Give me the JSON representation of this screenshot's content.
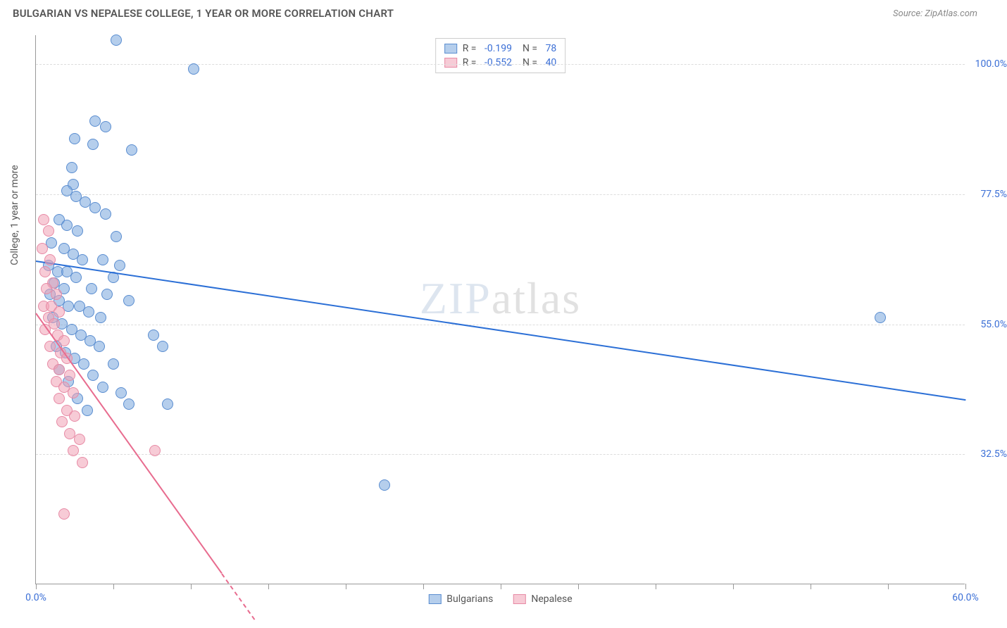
{
  "title": "BULGARIAN VS NEPALESE COLLEGE, 1 YEAR OR MORE CORRELATION CHART",
  "source": "Source: ZipAtlas.com",
  "watermark_zip": "ZIP",
  "watermark_atlas": "atlas",
  "chart": {
    "type": "scatter",
    "ylabel": "College, 1 year or more",
    "xlim": [
      0,
      60
    ],
    "ylim": [
      10,
      105
    ],
    "xtick_positions": [
      0,
      5,
      10,
      15,
      20,
      25,
      30,
      35,
      40,
      45,
      50,
      55,
      60
    ],
    "xtick_labels": {
      "0": "0.0%",
      "60": "60.0%"
    },
    "ytick_positions": [
      32.5,
      55.0,
      77.5,
      100.0
    ],
    "ytick_labels": [
      "32.5%",
      "55.0%",
      "77.5%",
      "100.0%"
    ],
    "background_color": "#ffffff",
    "grid_color": "#dddddd",
    "axis_color": "#999999",
    "tick_label_color": "#3b6fd6",
    "label_color": "#555555",
    "title_fontsize": 15,
    "label_fontsize": 14,
    "series": [
      {
        "name": "Bulgarians",
        "marker_color": "rgba(120,165,220,0.55)",
        "marker_border": "#5a8dd0",
        "marker_radius": 8,
        "trend_color": "#2b6fd6",
        "trend_dash": "solid",
        "R": "-0.199",
        "N": "78",
        "trend": {
          "x1": 0,
          "y1": 66,
          "x2": 60,
          "y2": 42
        },
        "points": [
          [
            5.2,
            104
          ],
          [
            10.2,
            99
          ],
          [
            3.8,
            90
          ],
          [
            4.5,
            89
          ],
          [
            2.5,
            87
          ],
          [
            3.7,
            86
          ],
          [
            6.2,
            85
          ],
          [
            2.3,
            82
          ],
          [
            2.4,
            79
          ],
          [
            2.0,
            78
          ],
          [
            2.6,
            77
          ],
          [
            3.2,
            76
          ],
          [
            3.8,
            75
          ],
          [
            4.5,
            74
          ],
          [
            1.5,
            73
          ],
          [
            2.0,
            72
          ],
          [
            2.7,
            71
          ],
          [
            5.2,
            70
          ],
          [
            1.0,
            69
          ],
          [
            1.8,
            68
          ],
          [
            2.4,
            67
          ],
          [
            3.0,
            66
          ],
          [
            4.3,
            66
          ],
          [
            5.4,
            65
          ],
          [
            0.8,
            65
          ],
          [
            1.4,
            64
          ],
          [
            2.0,
            64
          ],
          [
            2.6,
            63
          ],
          [
            5.0,
            63
          ],
          [
            1.2,
            62
          ],
          [
            1.8,
            61
          ],
          [
            3.6,
            61
          ],
          [
            4.6,
            60
          ],
          [
            0.9,
            60
          ],
          [
            1.5,
            59
          ],
          [
            6.0,
            59
          ],
          [
            2.1,
            58
          ],
          [
            2.8,
            58
          ],
          [
            3.4,
            57
          ],
          [
            1.1,
            56
          ],
          [
            4.2,
            56
          ],
          [
            1.7,
            55
          ],
          [
            54.5,
            56
          ],
          [
            2.3,
            54
          ],
          [
            7.6,
            53
          ],
          [
            2.9,
            53
          ],
          [
            3.5,
            52
          ],
          [
            1.3,
            51
          ],
          [
            4.1,
            51
          ],
          [
            8.2,
            51
          ],
          [
            1.9,
            50
          ],
          [
            2.5,
            49
          ],
          [
            5.0,
            48
          ],
          [
            3.1,
            48
          ],
          [
            1.5,
            47
          ],
          [
            3.7,
            46
          ],
          [
            2.1,
            45
          ],
          [
            4.3,
            44
          ],
          [
            5.5,
            43
          ],
          [
            2.7,
            42
          ],
          [
            6.0,
            41
          ],
          [
            8.5,
            41
          ],
          [
            3.3,
            40
          ],
          [
            22.5,
            27
          ]
        ]
      },
      {
        "name": "Nepalese",
        "marker_color": "rgba(240,160,180,0.55)",
        "marker_border": "#e78aa5",
        "marker_radius": 8,
        "trend_color": "#e86c8f",
        "trend_dash": "solid_then_dashed",
        "R": "-0.552",
        "N": "40",
        "trend": {
          "x1": 0,
          "y1": 57,
          "x2": 12,
          "y2": 12
        },
        "points": [
          [
            0.5,
            73
          ],
          [
            0.8,
            71
          ],
          [
            0.4,
            68
          ],
          [
            0.9,
            66
          ],
          [
            0.6,
            64
          ],
          [
            1.1,
            62
          ],
          [
            0.7,
            61
          ],
          [
            1.3,
            60
          ],
          [
            0.5,
            58
          ],
          [
            1.0,
            58
          ],
          [
            1.5,
            57
          ],
          [
            0.8,
            56
          ],
          [
            1.2,
            55
          ],
          [
            0.6,
            54
          ],
          [
            1.4,
            53
          ],
          [
            1.8,
            52
          ],
          [
            0.9,
            51
          ],
          [
            1.6,
            50
          ],
          [
            2.0,
            49
          ],
          [
            1.1,
            48
          ],
          [
            1.5,
            47
          ],
          [
            2.2,
            46
          ],
          [
            1.3,
            45
          ],
          [
            1.8,
            44
          ],
          [
            2.4,
            43
          ],
          [
            1.5,
            42
          ],
          [
            2.0,
            40
          ],
          [
            2.5,
            39
          ],
          [
            1.7,
            38
          ],
          [
            2.2,
            36
          ],
          [
            2.8,
            35
          ],
          [
            7.7,
            33
          ],
          [
            2.4,
            33
          ],
          [
            3.0,
            31
          ],
          [
            1.8,
            22
          ]
        ]
      }
    ],
    "legend_bottom": [
      {
        "label": "Bulgarians",
        "fill": "rgba(120,165,220,0.55)",
        "border": "#5a8dd0"
      },
      {
        "label": "Nepalese",
        "fill": "rgba(240,160,180,0.55)",
        "border": "#e78aa5"
      }
    ]
  }
}
